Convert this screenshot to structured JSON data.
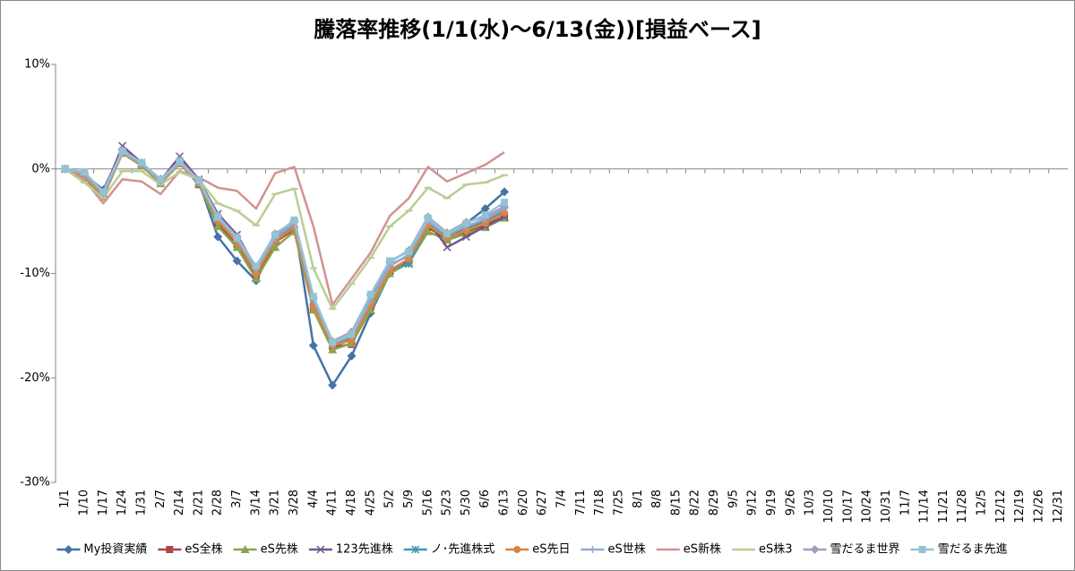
{
  "chart_data": {
    "type": "line",
    "title": "騰落率推移(1/1(水)～6/13(金))[損益ベース]",
    "categories": [
      "1/1",
      "1/10",
      "1/17",
      "1/24",
      "1/31",
      "2/7",
      "2/14",
      "2/21",
      "2/28",
      "3/7",
      "3/14",
      "3/21",
      "3/28",
      "4/4",
      "4/11",
      "4/18",
      "4/25",
      "5/2",
      "5/9",
      "5/16",
      "5/23",
      "5/30",
      "6/6",
      "6/13",
      "6/20",
      "6/27",
      "7/4",
      "7/11",
      "7/18",
      "7/25",
      "8/1",
      "8/8",
      "8/15",
      "8/22",
      "8/29",
      "9/5",
      "9/12",
      "9/19",
      "9/26",
      "10/3",
      "10/10",
      "10/17",
      "10/24",
      "10/31",
      "11/7",
      "11/14",
      "11/21",
      "11/28",
      "12/5",
      "12/12",
      "12/19",
      "12/26",
      "12/31"
    ],
    "ylim": [
      -30,
      10
    ],
    "yticks": [
      {
        "value": -30,
        "label": "-30%"
      },
      {
        "value": -20,
        "label": "-20%"
      },
      {
        "value": -10,
        "label": "-10%"
      },
      {
        "value": 0,
        "label": "0%"
      },
      {
        "value": 10,
        "label": "10%"
      }
    ],
    "grid": false,
    "legend": "bottom",
    "series": [
      {
        "name": "My投資実績",
        "color": "#4572A7",
        "marker": "diamond",
        "values": [
          0,
          -0.5,
          -2,
          1.8,
          0.5,
          -1,
          0.8,
          -1.2,
          -6.5,
          -8.8,
          -10.7,
          -7,
          -5,
          -16.9,
          -20.7,
          -17.9,
          -13.8,
          -10,
          -8.8,
          -5.5,
          -6.5,
          -5.2,
          -3.8,
          -2.2,
          null,
          null,
          null,
          null,
          null,
          null,
          null,
          null,
          null,
          null,
          null,
          null,
          null,
          null,
          null,
          null,
          null,
          null,
          null,
          null,
          null,
          null,
          null,
          null,
          null,
          null,
          null,
          null,
          null
        ]
      },
      {
        "name": "eS全株",
        "color": "#AA4643",
        "marker": "square",
        "values": [
          0,
          -0.7,
          -2.5,
          1.6,
          0.4,
          -1.3,
          0.6,
          -1.5,
          -5.2,
          -7.2,
          -10.2,
          -7,
          -5.8,
          -13.3,
          -17,
          -16.8,
          -13.2,
          -9.8,
          -8.8,
          -5.6,
          -6.7,
          -6,
          -5.4,
          -4.5,
          null,
          null,
          null,
          null,
          null,
          null,
          null,
          null,
          null,
          null,
          null,
          null,
          null,
          null,
          null,
          null,
          null,
          null,
          null,
          null,
          null,
          null,
          null,
          null,
          null,
          null,
          null,
          null,
          null
        ]
      },
      {
        "name": "eS先株",
        "color": "#89A54E",
        "marker": "triangle",
        "values": [
          0,
          -0.8,
          -2.7,
          1.5,
          0.3,
          -1.4,
          0.5,
          -1.4,
          -5.5,
          -7.5,
          -10.5,
          -7.5,
          -6,
          -13.5,
          -17.3,
          -16.7,
          -13.5,
          -10,
          -9,
          -6,
          -6.8,
          -6.2,
          -5.6,
          -4.7,
          null,
          null,
          null,
          null,
          null,
          null,
          null,
          null,
          null,
          null,
          null,
          null,
          null,
          null,
          null,
          null,
          null,
          null,
          null,
          null,
          null,
          null,
          null,
          null,
          null,
          null,
          null,
          null,
          null
        ]
      },
      {
        "name": "123先進株",
        "color": "#71588F",
        "marker": "x",
        "values": [
          0,
          -0.5,
          -2.3,
          2.2,
          0.6,
          -1.1,
          1.2,
          -1,
          -4.3,
          -6.3,
          -9.5,
          -6.5,
          -5.2,
          -12.8,
          -16.6,
          -16,
          -12.3,
          -9.2,
          -8.3,
          -5,
          -7.5,
          -6.5,
          -5.5,
          -4.6,
          null,
          null,
          null,
          null,
          null,
          null,
          null,
          null,
          null,
          null,
          null,
          null,
          null,
          null,
          null,
          null,
          null,
          null,
          null,
          null,
          null,
          null,
          null,
          null,
          null,
          null,
          null,
          null,
          null
        ]
      },
      {
        "name": "ノ･先進株式",
        "color": "#4198AF",
        "marker": "star",
        "values": [
          0,
          -0.6,
          -2.5,
          1.7,
          0.5,
          -1.2,
          0.7,
          -1.2,
          -4.8,
          -6.8,
          -9.8,
          -6.8,
          -5.4,
          -12.6,
          -16.8,
          -16.2,
          -12.8,
          -9.6,
          -9.1,
          -5.3,
          -6.5,
          -5.7,
          -5,
          -4,
          null,
          null,
          null,
          null,
          null,
          null,
          null,
          null,
          null,
          null,
          null,
          null,
          null,
          null,
          null,
          null,
          null,
          null,
          null,
          null,
          null,
          null,
          null,
          null,
          null,
          null,
          null,
          null,
          null
        ]
      },
      {
        "name": "eS先日",
        "color": "#DB843D",
        "marker": "circle",
        "values": [
          0,
          -0.7,
          -2.6,
          1.5,
          0.4,
          -1.3,
          0.5,
          -1.3,
          -5,
          -7,
          -10,
          -6.9,
          -5.6,
          -13.2,
          -16.9,
          -16.4,
          -13,
          -9.7,
          -8.6,
          -5.4,
          -6.6,
          -5.9,
          -5.2,
          -4.2,
          null,
          null,
          null,
          null,
          null,
          null,
          null,
          null,
          null,
          null,
          null,
          null,
          null,
          null,
          null,
          null,
          null,
          null,
          null,
          null,
          null,
          null,
          null,
          null,
          null,
          null,
          null,
          null,
          null
        ]
      },
      {
        "name": "eS世株",
        "color": "#93A9CF",
        "marker": "plus",
        "values": [
          0,
          -0.5,
          -2.4,
          1.6,
          0.5,
          -1.2,
          0.6,
          -1.2,
          -4.7,
          -6.7,
          -9.6,
          -6.6,
          -5.2,
          -12.5,
          -16.7,
          -16,
          -12.6,
          -9.3,
          -8.2,
          -5,
          -6.3,
          -5.5,
          -4.8,
          -3.8,
          null,
          null,
          null,
          null,
          null,
          null,
          null,
          null,
          null,
          null,
          null,
          null,
          null,
          null,
          null,
          null,
          null,
          null,
          null,
          null,
          null,
          null,
          null,
          null,
          null,
          null,
          null,
          null,
          null
        ]
      },
      {
        "name": "eS新株",
        "color": "#D19392",
        "marker": "none",
        "values": [
          0,
          -1,
          -3.3,
          -1,
          -1.2,
          -2.4,
          -0.2,
          -0.8,
          -1.8,
          -2.1,
          -3.8,
          -0.4,
          0.2,
          -5.5,
          -13,
          -10.5,
          -8,
          -4.5,
          -2.8,
          0.2,
          -1.2,
          -0.4,
          0.4,
          1.6,
          null,
          null,
          null,
          null,
          null,
          null,
          null,
          null,
          null,
          null,
          null,
          null,
          null,
          null,
          null,
          null,
          null,
          null,
          null,
          null,
          null,
          null,
          null,
          null,
          null,
          null,
          null,
          null,
          null
        ]
      },
      {
        "name": "eS株3",
        "color": "#B9CD96",
        "marker": "dash",
        "values": [
          0,
          -1.3,
          -2.8,
          -0.2,
          -0.2,
          -1.5,
          -0.3,
          -1,
          -3.3,
          -4,
          -5.4,
          -2.4,
          -1.9,
          -9.5,
          -13.4,
          -11,
          -8.5,
          -5.5,
          -4,
          -1.8,
          -2.8,
          -1.5,
          -1.3,
          -0.6,
          null,
          null,
          null,
          null,
          null,
          null,
          null,
          null,
          null,
          null,
          null,
          null,
          null,
          null,
          null,
          null,
          null,
          null,
          null,
          null,
          null,
          null,
          null,
          null,
          null,
          null,
          null,
          null,
          null
        ]
      },
      {
        "name": "雪だるま世界",
        "color": "#A99BBD",
        "marker": "diamond",
        "values": [
          0,
          -0.4,
          -2.3,
          1.8,
          0.6,
          -1.1,
          0.8,
          -1.1,
          -4.5,
          -6.5,
          -9.4,
          -6.2,
          -5,
          -12.3,
          -16.5,
          -15.6,
          -12.1,
          -8.9,
          -7.8,
          -4.6,
          -6.1,
          -5.1,
          -4.6,
          -3.6,
          null,
          null,
          null,
          null,
          null,
          null,
          null,
          null,
          null,
          null,
          null,
          null,
          null,
          null,
          null,
          null,
          null,
          null,
          null,
          null,
          null,
          null,
          null,
          null,
          null,
          null,
          null,
          null,
          null
        ]
      },
      {
        "name": "雪だるま先進",
        "color": "#91C3D5",
        "marker": "square",
        "values": [
          0,
          -0.3,
          -2.2,
          1.7,
          0.6,
          -1,
          0.7,
          -1.1,
          -4.6,
          -6.6,
          -9.3,
          -6.3,
          -4.9,
          -12.2,
          -16.6,
          -15.8,
          -12,
          -8.8,
          -7.9,
          -4.7,
          -6.2,
          -5.2,
          -4.4,
          -3.2,
          null,
          null,
          null,
          null,
          null,
          null,
          null,
          null,
          null,
          null,
          null,
          null,
          null,
          null,
          null,
          null,
          null,
          null,
          null,
          null,
          null,
          null,
          null,
          null,
          null,
          null,
          null,
          null,
          null
        ]
      }
    ]
  }
}
